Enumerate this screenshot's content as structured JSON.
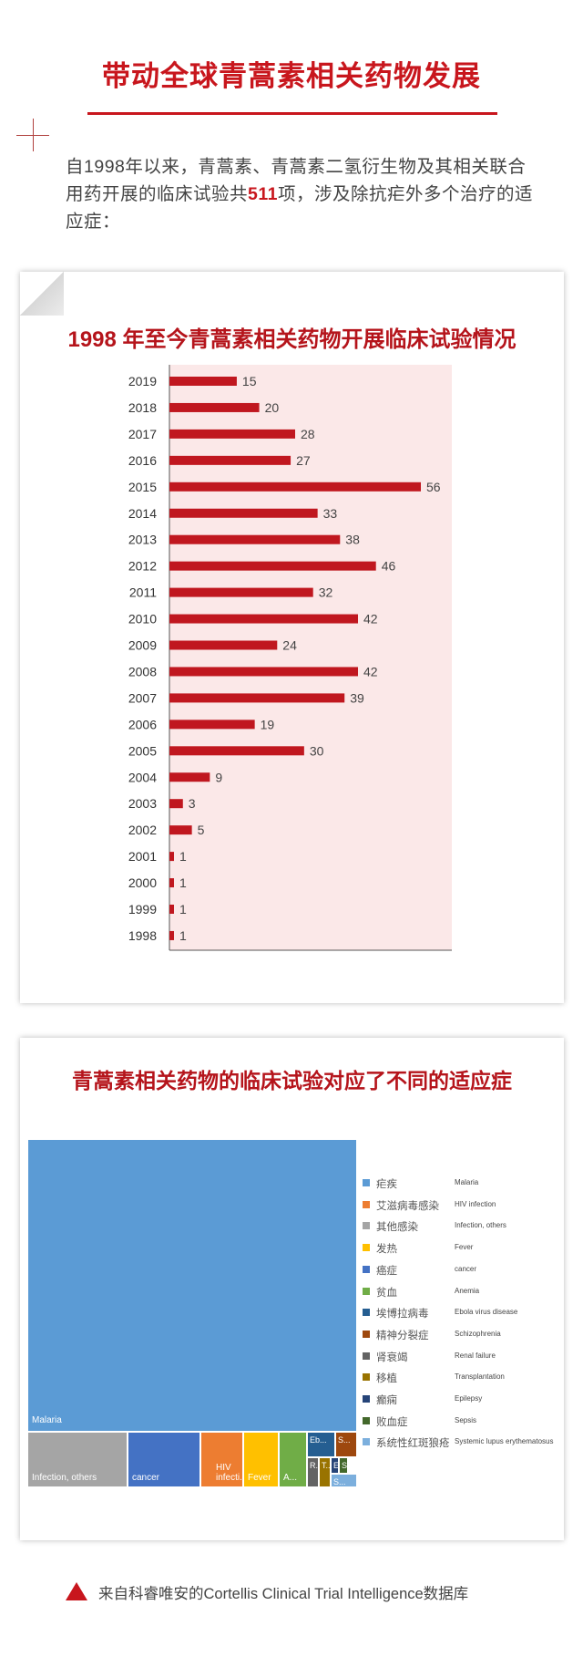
{
  "header": {
    "title": "带动全球青蒿素相关药物发展",
    "intro_prefix": "自1998年以来，青蒿素、青蒿素二氢衍生物及其相关联合用药开展的临床试验共",
    "intro_number": "511",
    "intro_suffix": "项，涉及除抗疟外多个治疗的适应症："
  },
  "chart_data": [
    {
      "type": "bar",
      "orientation": "horizontal",
      "title": "1998 年至今青蒿素相关药物开展临床试验情况",
      "categories": [
        "2019",
        "2018",
        "2017",
        "2016",
        "2015",
        "2014",
        "2013",
        "2012",
        "2011",
        "2010",
        "2009",
        "2008",
        "2007",
        "2006",
        "2005",
        "2004",
        "2003",
        "2002",
        "2001",
        "2000",
        "1999",
        "1998"
      ],
      "values": [
        15,
        20,
        28,
        27,
        56,
        33,
        38,
        46,
        32,
        42,
        24,
        42,
        39,
        19,
        30,
        9,
        3,
        5,
        1,
        1,
        1,
        1
      ],
      "xlim": [
        0,
        62
      ],
      "colors": {
        "bar": "#c0171f",
        "plot_bg": "#fbe8e8",
        "axis": "#555555"
      }
    },
    {
      "type": "treemap",
      "title": "青蒿素相关药物的临床试验对应了不同的适应症",
      "items": [
        {
          "zh": "疟疾",
          "en": "Malaria",
          "label": "Malaria",
          "color": "#5b9bd5"
        },
        {
          "zh": "艾滋病毒感染",
          "en": "HIV infection",
          "label": "HIV infecti...",
          "color": "#ed7d31"
        },
        {
          "zh": "其他感染",
          "en": "Infection, others",
          "label": "Infection, others",
          "color": "#a5a5a5"
        },
        {
          "zh": "发热",
          "en": "Fever",
          "label": "Fever",
          "color": "#ffc000"
        },
        {
          "zh": "癌症",
          "en": "cancer",
          "label": "cancer",
          "color": "#4472c4"
        },
        {
          "zh": "贫血",
          "en": "Anemia",
          "label": "A...",
          "color": "#70ad47"
        },
        {
          "zh": "埃博拉病毒",
          "en": "Ebola virus disease",
          "label": "Eb...",
          "color": "#255e91"
        },
        {
          "zh": "精神分裂症",
          "en": "Schizophrenia",
          "label": "S...",
          "color": "#9e480e"
        },
        {
          "zh": "肾衰竭",
          "en": "Renal failure",
          "label": "R...",
          "color": "#636363"
        },
        {
          "zh": "移植",
          "en": "Transplantation",
          "label": "T...",
          "color": "#997300"
        },
        {
          "zh": "癫痫",
          "en": "Epilepsy",
          "label": "E",
          "color": "#264478"
        },
        {
          "zh": "败血症",
          "en": "Sepsis",
          "label": "S",
          "color": "#43682b"
        },
        {
          "zh": "系统性红斑狼疮",
          "en": "Systemic lupus erythematosus",
          "label": "S...",
          "color": "#7cafdd"
        }
      ]
    }
  ],
  "footer": {
    "source": "来自科睿唯安的Cortellis Clinical Trial Intelligence数据库"
  }
}
